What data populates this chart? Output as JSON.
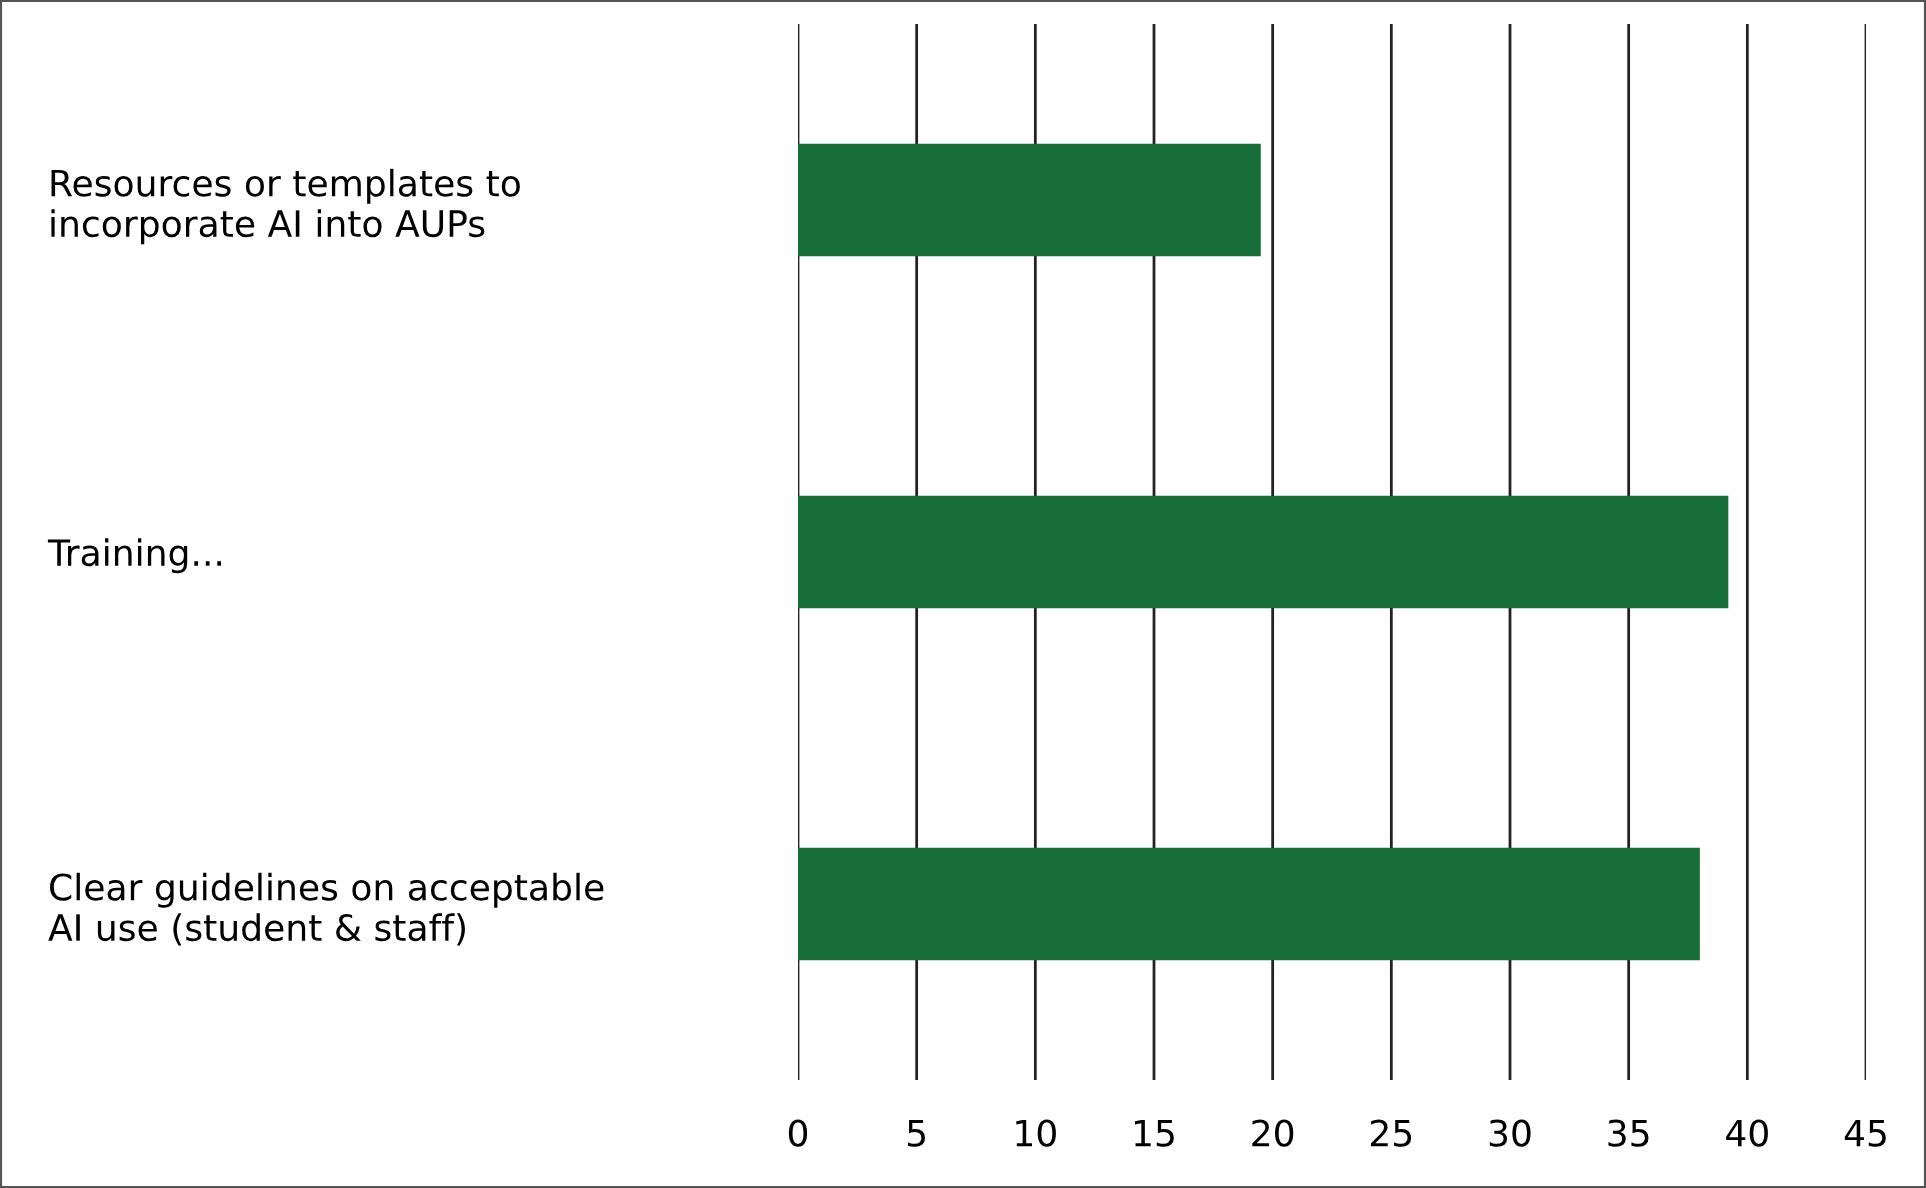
{
  "chart_data": {
    "type": "bar",
    "orientation": "horizontal",
    "categories": [
      "Resources or templates to\nincorporate AI into AUPs",
      "Training...",
      "Clear guidelines on acceptable\nAI use (student & staff)"
    ],
    "values": [
      19.5,
      39.2,
      38.0
    ],
    "color": "#176e38",
    "xlim": [
      0,
      45
    ],
    "xticks": [
      0,
      5,
      10,
      15,
      20,
      25,
      30,
      35,
      40,
      45
    ],
    "grid": "x",
    "legend": false
  }
}
